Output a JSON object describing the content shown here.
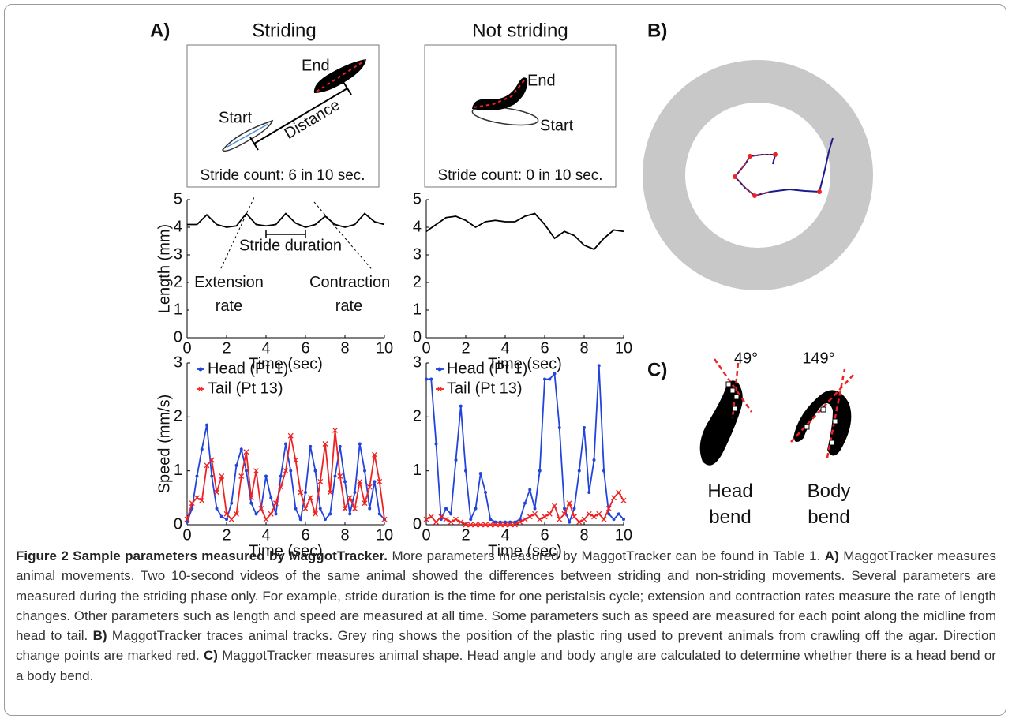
{
  "chart_data": [
    {
      "type": "line",
      "x": [
        0,
        0.5,
        1,
        1.5,
        2,
        2.5,
        3,
        3.5,
        4,
        4.5,
        5,
        5.5,
        6,
        6.5,
        7,
        7.5,
        8,
        8.5,
        9,
        9.5,
        10
      ],
      "values": [
        4.1,
        4.1,
        4.45,
        4.1,
        4.0,
        4.05,
        4.5,
        4.1,
        4.05,
        4.1,
        4.5,
        4.15,
        4.0,
        4.1,
        4.4,
        4.1,
        4.0,
        4.1,
        4.5,
        4.2,
        4.1
      ],
      "color": "#000000",
      "xlim": [
        0,
        10
      ],
      "ylim": [
        0,
        5
      ],
      "xticks": [
        0,
        2,
        4,
        6,
        8,
        10
      ],
      "yticks": [
        0,
        1,
        2,
        3,
        4,
        5
      ],
      "xlabel": "Time (sec)",
      "ylabel": "Length (mm)",
      "annotations": [
        "Stride duration",
        "Extension rate",
        "Contraction rate"
      ]
    },
    {
      "type": "line",
      "x": [
        0,
        0.5,
        1,
        1.5,
        2,
        2.5,
        3,
        3.5,
        4,
        4.5,
        5,
        5.5,
        6,
        6.5,
        7,
        7.5,
        8,
        8.5,
        9,
        9.5,
        10
      ],
      "values": [
        3.85,
        4.1,
        4.35,
        4.4,
        4.25,
        4.0,
        4.2,
        4.25,
        4.2,
        4.2,
        4.4,
        4.5,
        4.1,
        3.6,
        3.85,
        3.7,
        3.35,
        3.2,
        3.6,
        3.9,
        3.85
      ],
      "color": "#000000",
      "xlim": [
        0,
        10
      ],
      "ylim": [
        0,
        5
      ],
      "xticks": [
        0,
        2,
        4,
        6,
        8,
        10
      ],
      "yticks": [
        0,
        1,
        2,
        3,
        4,
        5
      ],
      "xlabel": "Time (sec)"
    },
    {
      "type": "line",
      "x": [
        0,
        0.25,
        0.5,
        0.75,
        1,
        1.25,
        1.5,
        1.75,
        2,
        2.25,
        2.5,
        2.75,
        3,
        3.25,
        3.5,
        3.75,
        4,
        4.25,
        4.5,
        4.75,
        5,
        5.25,
        5.5,
        5.75,
        6,
        6.25,
        6.5,
        6.75,
        7,
        7.25,
        7.5,
        7.75,
        8,
        8.25,
        8.5,
        8.75,
        9,
        9.25,
        9.5,
        9.75,
        10
      ],
      "series": [
        {
          "name": "Head (Pt 1)",
          "color": "#2244dd",
          "marker": "dot",
          "values": [
            0.05,
            0.3,
            0.9,
            1.4,
            1.85,
            0.9,
            0.3,
            0.15,
            0.1,
            0.4,
            1.1,
            1.4,
            1.0,
            0.4,
            0.2,
            0.3,
            0.9,
            0.5,
            0.2,
            0.9,
            1.5,
            1.0,
            0.3,
            0.1,
            0.6,
            1.45,
            1.0,
            0.3,
            0.1,
            0.2,
            0.9,
            1.45,
            0.8,
            0.2,
            0.6,
            1.5,
            1.0,
            0.3,
            0.8,
            0.2,
            0.1
          ]
        },
        {
          "name": "Tail (Pt 13)",
          "color": "#ee2222",
          "marker": "x",
          "values": [
            0.1,
            0.4,
            0.5,
            0.45,
            1.1,
            1.2,
            0.6,
            0.9,
            0.2,
            0.1,
            0.2,
            0.9,
            1.35,
            0.5,
            1.0,
            0.3,
            0.1,
            0.2,
            0.4,
            0.7,
            1.0,
            1.65,
            1.2,
            0.6,
            0.3,
            0.5,
            0.2,
            0.8,
            1.5,
            0.6,
            1.75,
            0.9,
            0.3,
            0.5,
            0.3,
            0.8,
            0.4,
            0.7,
            1.3,
            0.8,
            0.1
          ]
        }
      ],
      "xlim": [
        0,
        10
      ],
      "ylim": [
        0,
        3
      ],
      "xticks": [
        0,
        2,
        4,
        6,
        8,
        10
      ],
      "yticks": [
        0,
        1,
        2,
        3
      ],
      "xlabel": "Time (sec)",
      "ylabel": "Speed (mm/s)",
      "legend": "upper-left"
    },
    {
      "type": "line",
      "x": [
        0,
        0.25,
        0.5,
        0.75,
        1,
        1.25,
        1.5,
        1.75,
        2,
        2.25,
        2.5,
        2.75,
        3,
        3.25,
        3.5,
        3.75,
        4,
        4.25,
        4.5,
        4.75,
        5,
        5.25,
        5.5,
        5.75,
        6,
        6.25,
        6.5,
        6.75,
        7,
        7.25,
        7.5,
        7.75,
        8,
        8.25,
        8.5,
        8.75,
        9,
        9.25,
        9.5,
        9.75,
        10
      ],
      "series": [
        {
          "name": "Head (Pt 1)",
          "color": "#2244dd",
          "marker": "dot",
          "values": [
            2.7,
            2.7,
            1.5,
            0.1,
            0.3,
            0.2,
            1.2,
            2.2,
            1.0,
            0.1,
            0.3,
            0.95,
            0.6,
            0.1,
            0.05,
            0.05,
            0.05,
            0.05,
            0.05,
            0.1,
            0.4,
            0.65,
            0.3,
            1.0,
            2.7,
            2.7,
            2.8,
            1.8,
            0.3,
            0.05,
            0.3,
            1.0,
            1.8,
            0.6,
            1.2,
            2.95,
            1.0,
            0.2,
            0.1,
            0.2,
            0.1
          ]
        },
        {
          "name": "Tail (Pt 13)",
          "color": "#ee2222",
          "marker": "x",
          "values": [
            0.1,
            0.15,
            0.05,
            0.15,
            0.1,
            0.05,
            0.1,
            0.05,
            0,
            0,
            0,
            0,
            0,
            0,
            0,
            0,
            0,
            0,
            0,
            0.05,
            0.1,
            0.15,
            0.2,
            0.1,
            0.15,
            0.2,
            0.35,
            0.1,
            0.2,
            0.4,
            0.15,
            0.05,
            0.1,
            0.2,
            0.15,
            0.2,
            0.1,
            0.3,
            0.5,
            0.6,
            0.45
          ]
        }
      ],
      "xlim": [
        0,
        10
      ],
      "ylim": [
        0,
        3
      ],
      "xticks": [
        0,
        2,
        4,
        6,
        8,
        10
      ],
      "yticks": [
        0,
        1,
        2,
        3
      ],
      "xlabel": "Time (sec)",
      "legend": "upper-left"
    }
  ],
  "figure": {
    "panel_labels": [
      "A)",
      "B)",
      "C)"
    ],
    "panel_a": {
      "columns": [
        "Striding",
        "Not striding"
      ],
      "striding_image": {
        "end": "End",
        "start": "Start",
        "distance": "Distance",
        "stride_count": "Stride count: 6 in 10 sec."
      },
      "not_striding_image": {
        "end": "End",
        "start": "Start",
        "stride_count": "Stride count: 0 in 10 sec."
      }
    },
    "panel_c": {
      "head_bend": {
        "angle": "49°",
        "label": "Head bend"
      },
      "body_bend": {
        "angle": "149°",
        "label": "Body bend"
      }
    },
    "caption": {
      "title": "Figure 2 Sample parameters measured by MaggotTracker.",
      "intro": "More parameters measured by MaggotTracker can be found in Table 1.",
      "parts": [
        {
          "label": "A)",
          "text": "MaggotTracker measures animal movements. Two 10-second videos of the same animal showed the differences between striding and non-striding movements. Several parameters are measured during the striding phase only. For example, stride duration is the time for one peristalsis cycle; extension and contraction rates measure the rate of length changes. Other parameters such as length and speed are measured at all time. Some parameters such as speed are measured for each point along the midline from head to tail."
        },
        {
          "label": "B)",
          "text": "MaggotTracker traces animal tracks. Grey ring shows the position of the plastic ring used to prevent animals from crawling off the agar. Direction change points are marked red."
        },
        {
          "label": "C)",
          "text": "MaggotTracker measures animal shape. Head angle and body angle are calculated to determine whether there is a head bend or a body bend."
        }
      ]
    }
  }
}
